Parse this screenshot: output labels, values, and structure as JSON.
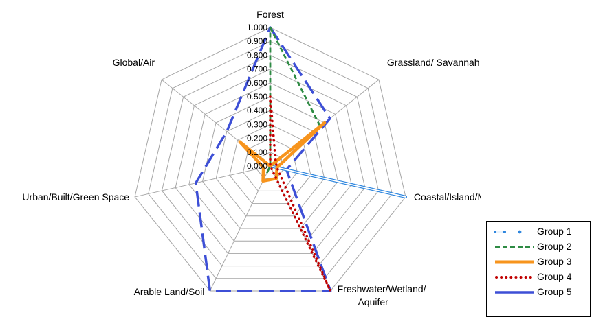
{
  "chart_data": {
    "type": "radar",
    "axes": [
      {
        "label": "Forest",
        "lines": [
          "Forest"
        ]
      },
      {
        "label": "Grassland/ Savannah",
        "lines": [
          "Grassland/ Savannah"
        ]
      },
      {
        "label": "Coastal/Island/Marine",
        "lines": [
          "Coastal/Island/Marine"
        ]
      },
      {
        "label": "Freshwater/Wetland/ Aquifer",
        "lines": [
          "Freshwater/Wetland/",
          "Aquifer"
        ]
      },
      {
        "label": "Arable Land/Soil",
        "lines": [
          "Arable Land/Soil"
        ]
      },
      {
        "label": "Urban/Built/Green Space",
        "lines": [
          "Urban/Built/Green Space"
        ]
      },
      {
        "label": "Global/Air",
        "lines": [
          "Global/Air"
        ]
      }
    ],
    "ticks": [
      "0.000",
      "0.100",
      "0.200",
      "0.300",
      "0.400",
      "0.500",
      "0.600",
      "0.700",
      "0.800",
      "0.900",
      "1.000"
    ],
    "range": [
      0,
      1
    ],
    "grid": true,
    "legend_position": "bottom-right",
    "series": [
      {
        "name": "Group 1",
        "color": "#2e86de",
        "style": "double-dash-dot",
        "values": [
          0.0,
          0.0,
          1.0,
          0.0,
          0.0,
          0.0,
          0.0
        ]
      },
      {
        "name": "Group 2",
        "color": "#2e8b44",
        "style": "dashed",
        "values": [
          1.0,
          0.46,
          0.0,
          0.0,
          0.05,
          0.0,
          0.0
        ]
      },
      {
        "name": "Group 3",
        "color": "#f7941d",
        "style": "solid-thick",
        "values": [
          0.0,
          0.5,
          0.05,
          0.1,
          0.12,
          0.05,
          0.28
        ]
      },
      {
        "name": "Group 4",
        "color": "#c00000",
        "style": "dotted",
        "values": [
          0.5,
          0.05,
          0.05,
          1.0,
          0.0,
          0.0,
          0.0
        ]
      },
      {
        "name": "Group 5",
        "color": "#3d4fd6",
        "style": "long-dash",
        "values": [
          1.0,
          0.55,
          0.12,
          1.0,
          1.0,
          0.55,
          0.4
        ]
      }
    ]
  }
}
